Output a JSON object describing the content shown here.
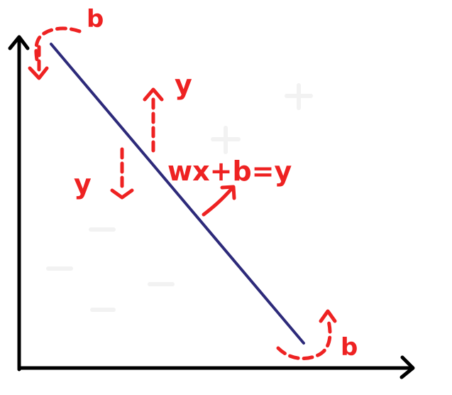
{
  "colors": {
    "axis": "#000000",
    "line": "#2d2a7a",
    "annotation": "#ee2222"
  },
  "annotations": {
    "equation": "wx+b=y",
    "top_left_b": "b",
    "bottom_right_b": "b",
    "upper_y": "y",
    "lower_y": "y"
  }
}
